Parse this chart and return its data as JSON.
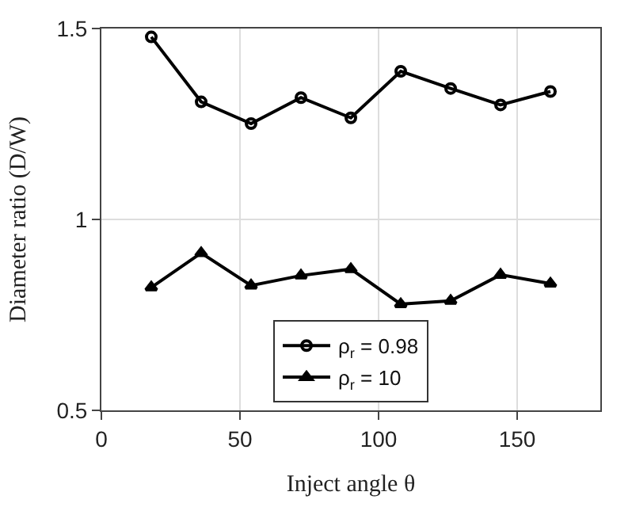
{
  "chart_data": {
    "type": "line",
    "xlabel": "Inject angle θ",
    "ylabel": "Diameter ratio (D/W)",
    "x": [
      18,
      36,
      54,
      72,
      90,
      108,
      126,
      144,
      162
    ],
    "series": [
      {
        "name": "ρ$_{r}$ = 0.98",
        "color": "#000000",
        "marker": "circle",
        "values": [
          1.478,
          1.308,
          1.251,
          1.319,
          1.266,
          1.388,
          1.343,
          1.3,
          1.335
        ]
      },
      {
        "name": "ρ$_{r}$ = 10",
        "color": "#000000",
        "marker": "triangle",
        "values": [
          0.822,
          0.912,
          0.827,
          0.853,
          0.87,
          0.778,
          0.787,
          0.855,
          0.832
        ]
      }
    ],
    "xlim": [
      0,
      180
    ],
    "xticks": [
      0,
      50,
      100,
      150
    ],
    "ylim": [
      0.5,
      1.5
    ],
    "yticks": [
      0.5,
      1,
      1.5
    ],
    "grid": true,
    "legend": "bottom",
    "line_style": "solid"
  }
}
